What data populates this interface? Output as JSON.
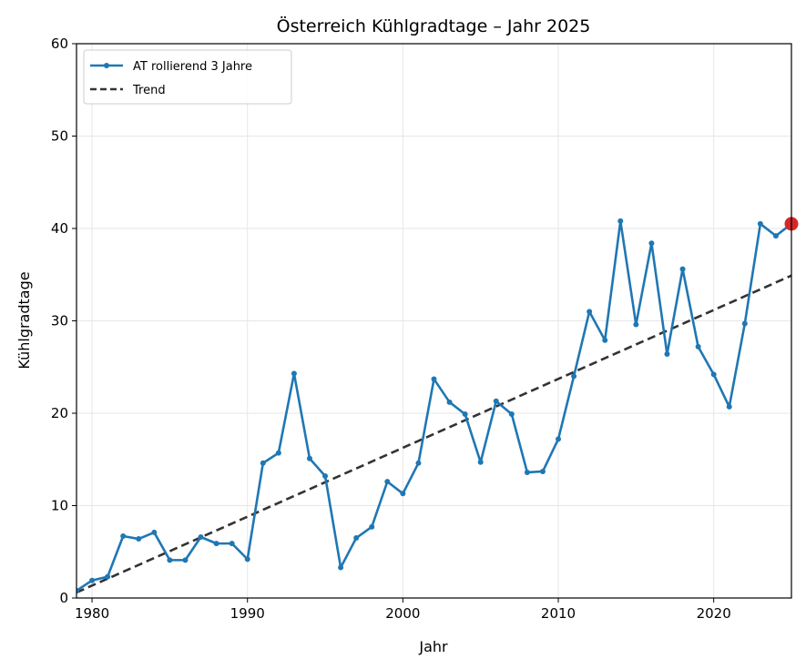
{
  "chart_data": {
    "type": "line",
    "title": "Österreich Kühlgradtage – Jahr 2025",
    "xlabel": "Jahr",
    "ylabel": "Kühlgradtage",
    "xlim": [
      1979,
      2025
    ],
    "ylim": [
      0,
      60
    ],
    "xticks": [
      1980,
      1990,
      2000,
      2010,
      2020
    ],
    "yticks": [
      0,
      10,
      20,
      30,
      40,
      50,
      60
    ],
    "grid": true,
    "legend_position": "upper-left",
    "series": [
      {
        "name": "AT rollierend 3 Jahre",
        "color": "#1f77b4",
        "style": "solid-with-markers",
        "x": [
          1979,
          1980,
          1981,
          1982,
          1983,
          1984,
          1985,
          1986,
          1987,
          1988,
          1989,
          1990,
          1991,
          1992,
          1993,
          1994,
          1995,
          1996,
          1997,
          1998,
          1999,
          2000,
          2001,
          2002,
          2003,
          2004,
          2005,
          2006,
          2007,
          2008,
          2009,
          2010,
          2011,
          2012,
          2013,
          2014,
          2015,
          2016,
          2017,
          2018,
          2019,
          2020,
          2021,
          2022,
          2023,
          2024,
          2025
        ],
        "y": [
          0.8,
          1.9,
          2.3,
          6.7,
          6.4,
          7.1,
          4.1,
          4.1,
          6.6,
          5.9,
          5.9,
          4.2,
          14.6,
          15.7,
          24.3,
          15.1,
          13.2,
          3.3,
          6.5,
          7.7,
          12.6,
          11.3,
          14.6,
          23.7,
          21.2,
          19.9,
          14.7,
          21.3,
          19.9,
          13.6,
          13.7,
          17.2,
          24.0,
          31.0,
          27.9,
          40.8,
          29.6,
          38.4,
          26.4,
          35.6,
          27.2,
          24.2,
          20.7,
          29.7,
          40.5,
          39.2,
          40.5
        ]
      },
      {
        "name": "Trend",
        "color": "#333333",
        "style": "dashed",
        "x": [
          1979,
          2025
        ],
        "y": [
          0.6,
          34.9
        ]
      }
    ],
    "highlight": {
      "x": 2025,
      "y": 40.5,
      "color": "#d62728"
    }
  }
}
